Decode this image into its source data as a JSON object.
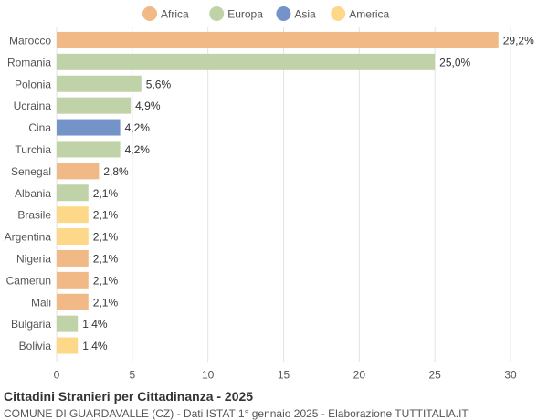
{
  "chart_data": {
    "type": "bar",
    "orientation": "horizontal",
    "title": "Cittadini Stranieri per Cittadinanza - 2025",
    "subtitle": "COMUNE DI GUARDAVALLE (CZ) - Dati ISTAT 1° gennaio 2025 - Elaborazione TUTTITALIA.IT",
    "legend": {
      "position": "top-center",
      "entries": [
        {
          "name": "Africa",
          "color": "#f0b985"
        },
        {
          "name": "Europa",
          "color": "#c0d2a8"
        },
        {
          "name": "Asia",
          "color": "#7393c9"
        },
        {
          "name": "America",
          "color": "#fdd888"
        }
      ]
    },
    "xlim": [
      0,
      30
    ],
    "xticks": [
      "0",
      "5",
      "10",
      "15",
      "20",
      "25",
      "30"
    ],
    "grid": true,
    "categories": [
      "Marocco",
      "Romania",
      "Polonia",
      "Ucraina",
      "Cina",
      "Turchia",
      "Senegal",
      "Albania",
      "Brasile",
      "Argentina",
      "Nigeria",
      "Camerun",
      "Mali",
      "Bulgaria",
      "Bolivia"
    ],
    "values": [
      29.2,
      25.0,
      5.6,
      4.9,
      4.2,
      4.2,
      2.8,
      2.1,
      2.1,
      2.1,
      2.1,
      2.1,
      2.1,
      1.4,
      1.4
    ],
    "labels": [
      "29,2%",
      "25,0%",
      "5,6%",
      "4,9%",
      "4,2%",
      "4,2%",
      "2,8%",
      "2,1%",
      "2,1%",
      "2,1%",
      "2,1%",
      "2,1%",
      "2,1%",
      "1,4%",
      "1,4%"
    ],
    "continents": [
      "Africa",
      "Europa",
      "Europa",
      "Europa",
      "Asia",
      "Europa",
      "Africa",
      "Europa",
      "America",
      "America",
      "Africa",
      "Africa",
      "Africa",
      "Europa",
      "America"
    ]
  }
}
